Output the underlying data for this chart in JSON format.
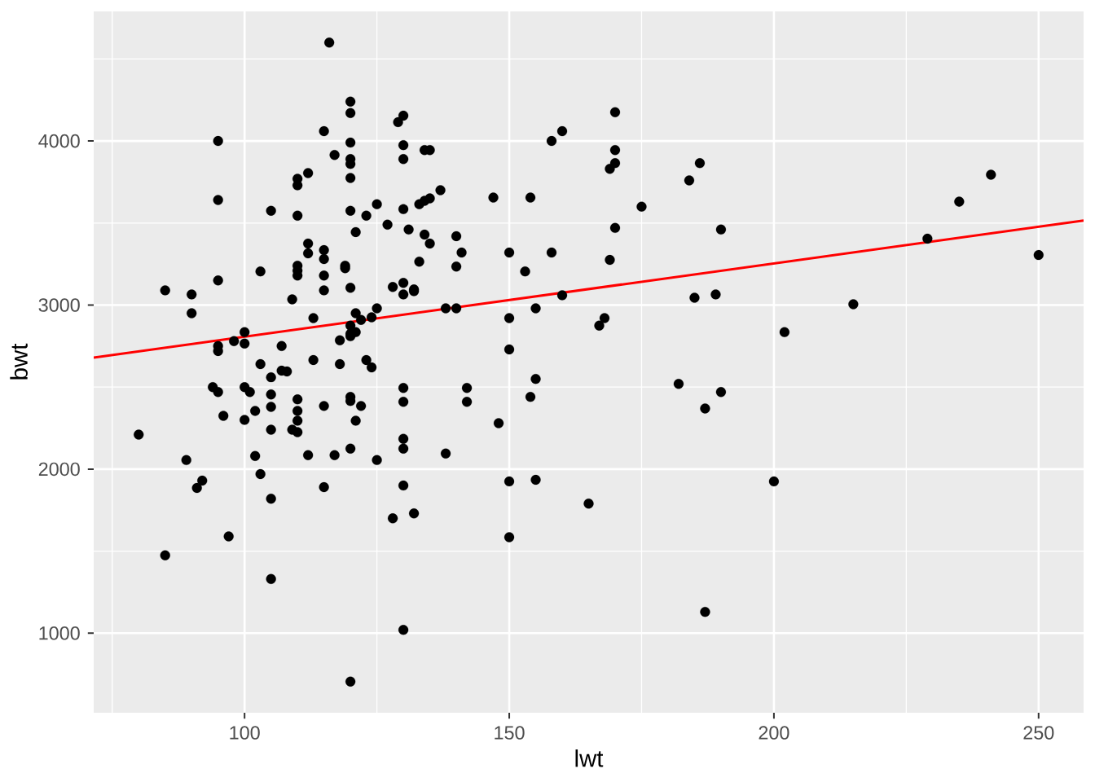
{
  "chart_data": {
    "type": "scatter",
    "xlabel": "lwt",
    "ylabel": "bwt",
    "marker": "circle",
    "grid": true,
    "xlim": [
      71.5,
      258.5
    ],
    "ylim": [
      515,
      4790
    ],
    "xticks": [
      100,
      150,
      200,
      250
    ],
    "yticks": [
      1000,
      2000,
      3000,
      4000
    ],
    "series": [
      {
        "color": "#000000",
        "x": [
          80,
          85,
          85,
          89,
          90,
          90,
          91,
          92,
          94,
          95,
          95,
          95,
          95,
          95,
          95,
          96,
          97,
          98,
          100,
          100,
          100,
          100,
          101,
          102,
          102,
          103,
          103,
          103,
          105,
          105,
          105,
          105,
          105,
          105,
          105,
          107,
          107,
          108,
          109,
          109,
          110,
          110,
          110,
          110,
          110,
          110,
          110,
          110,
          110,
          110,
          112,
          112,
          112,
          112,
          113,
          113,
          115,
          115,
          115,
          115,
          115,
          115,
          115,
          116,
          117,
          117,
          118,
          118,
          119,
          119,
          120,
          120,
          120,
          120,
          120,
          120,
          120,
          120,
          120,
          120,
          120,
          120,
          120,
          120,
          120,
          121,
          121,
          121,
          121,
          122,
          122,
          123,
          123,
          124,
          124,
          125,
          125,
          125,
          127,
          128,
          128,
          129,
          130,
          130,
          130,
          130,
          130,
          130,
          130,
          130,
          130,
          130,
          130,
          130,
          131,
          132,
          132,
          132,
          133,
          133,
          134,
          134,
          134,
          135,
          135,
          135,
          137,
          138,
          138,
          140,
          140,
          140,
          141,
          142,
          142,
          147,
          148,
          150,
          150,
          150,
          150,
          150,
          153,
          154,
          154,
          155,
          155,
          155,
          158,
          158,
          160,
          160,
          165,
          167,
          168,
          169,
          169,
          170,
          170,
          170,
          170,
          175,
          182,
          184,
          185,
          186,
          187,
          187,
          189,
          190,
          190,
          200,
          202,
          215,
          229,
          235,
          241,
          250
        ],
        "values": [
          2210,
          3090,
          1475,
          2055,
          3065,
          2950,
          1885,
          1930,
          2500,
          4000,
          3640,
          3150,
          2750,
          2720,
          2470,
          2325,
          1590,
          2780,
          2835,
          2765,
          2500,
          2300,
          2470,
          2355,
          2080,
          3205,
          2640,
          1970,
          3575,
          2560,
          2455,
          2380,
          2240,
          1820,
          1330,
          2750,
          2600,
          2595,
          3035,
          2240,
          3770,
          3730,
          3545,
          3240,
          3210,
          3180,
          2425,
          2355,
          2295,
          2225,
          3805,
          3375,
          3315,
          2085,
          2920,
          2665,
          4060,
          3335,
          3280,
          3180,
          3090,
          2385,
          1890,
          4600,
          3915,
          2085,
          2785,
          2640,
          3240,
          3225,
          4240,
          4170,
          3990,
          3890,
          3860,
          3775,
          3575,
          3105,
          2875,
          2825,
          2810,
          2440,
          2415,
          2125,
          705,
          3445,
          2950,
          2835,
          2295,
          2910,
          2385,
          3545,
          2665,
          2925,
          2620,
          3615,
          2980,
          2055,
          3490,
          3110,
          1700,
          4115,
          4155,
          3975,
          3890,
          3585,
          3135,
          3065,
          2495,
          2410,
          2185,
          2125,
          1900,
          1020,
          3460,
          3095,
          3085,
          1730,
          3615,
          3265,
          3945,
          3635,
          3430,
          3945,
          3650,
          3375,
          3700,
          2980,
          2095,
          3420,
          3235,
          2980,
          3320,
          2495,
          2410,
          3655,
          2280,
          3320,
          2920,
          2730,
          1925,
          1585,
          3205,
          3655,
          2440,
          2980,
          2550,
          1935,
          4000,
          3320,
          4060,
          3060,
          1790,
          2875,
          2920,
          3830,
          3275,
          4175,
          3945,
          3865,
          3470,
          3600,
          2520,
          3760,
          3045,
          3865,
          2370,
          1130,
          3065,
          3460,
          2470,
          1925,
          2835,
          3005,
          3405,
          3630,
          3795,
          3305
        ]
      },
      {
        "type": "line",
        "color": "#ff0000",
        "marker": "none",
        "x": [
          71.5,
          258.5
        ],
        "values": [
          2680,
          3515
        ]
      }
    ]
  }
}
